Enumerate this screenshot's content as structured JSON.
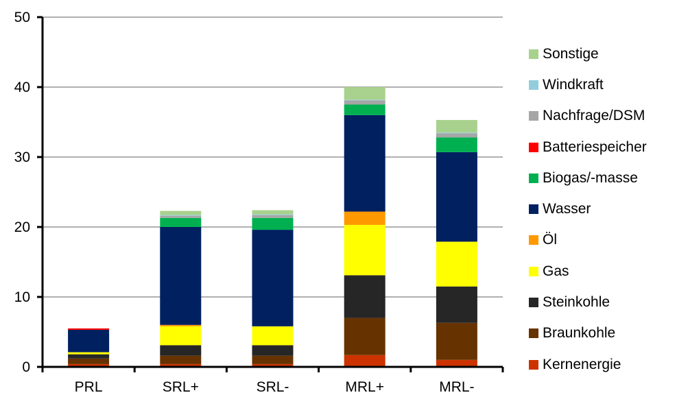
{
  "chart_data": {
    "type": "bar",
    "stacked": true,
    "categories": [
      "PRL",
      "SRL+",
      "SRL-",
      "MRL+",
      "MRL-"
    ],
    "ylim": [
      0,
      50
    ],
    "yticks": [
      "0",
      "10",
      "20",
      "30",
      "40",
      "50"
    ],
    "grid": true,
    "legend_position": "right",
    "series": [
      {
        "name": "Kernenergie",
        "color": "#CC3300",
        "values": [
          0.4,
          0.4,
          0.4,
          1.7,
          1.0
        ]
      },
      {
        "name": "Braunkohle",
        "color": "#663300",
        "values": [
          0.8,
          1.2,
          1.2,
          5.3,
          5.3
        ]
      },
      {
        "name": "Steinkohle",
        "color": "#262626",
        "values": [
          0.6,
          1.5,
          1.5,
          6.1,
          5.2
        ]
      },
      {
        "name": "Gas",
        "color": "#FFFF00",
        "values": [
          0.3,
          2.7,
          2.7,
          7.2,
          6.4
        ]
      },
      {
        "name": "Öl",
        "color": "#FF9900",
        "values": [
          0.0,
          0.2,
          0.0,
          1.9,
          0.0
        ]
      },
      {
        "name": "Wasser",
        "color": "#002060",
        "values": [
          3.2,
          14.0,
          13.8,
          13.8,
          12.8
        ]
      },
      {
        "name": "Biogas/-masse",
        "color": "#00B050",
        "values": [
          0.0,
          1.3,
          1.7,
          1.5,
          2.1
        ]
      },
      {
        "name": "Batteriespeicher",
        "color": "#FF0000",
        "values": [
          0.2,
          0.0,
          0.0,
          0.0,
          0.0
        ]
      },
      {
        "name": "Nachfrage/DSM",
        "color": "#A6A6A6",
        "values": [
          0.0,
          0.3,
          0.4,
          0.6,
          0.6
        ]
      },
      {
        "name": "Windkraft",
        "color": "#93CDDD",
        "values": [
          0.0,
          0.1,
          0.1,
          0.1,
          0.1
        ]
      },
      {
        "name": "Sonstige",
        "color": "#A9D18E",
        "values": [
          0.0,
          0.6,
          0.6,
          1.8,
          1.8
        ]
      }
    ]
  }
}
